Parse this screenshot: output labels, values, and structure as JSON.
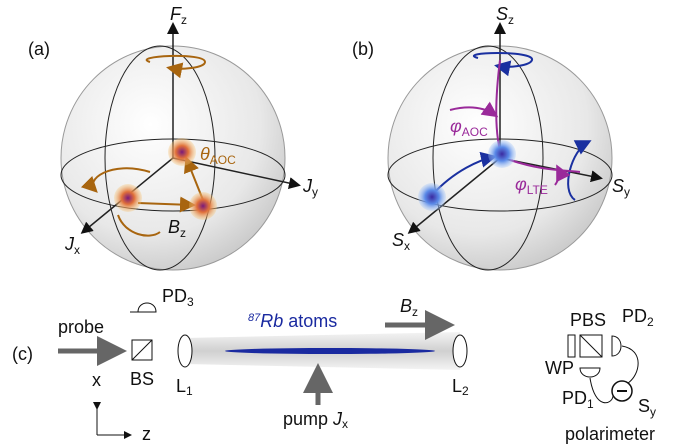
{
  "panel_a": {
    "label": "(a)",
    "axis_z": {
      "symbol": "F",
      "sub": "z"
    },
    "axis_y": {
      "symbol": "J",
      "sub": "y"
    },
    "axis_x": {
      "symbol": "J",
      "sub": "x"
    },
    "field": {
      "symbol": "B",
      "sub": "z"
    },
    "angle": {
      "symbol": "θ",
      "sub": "AOC"
    }
  },
  "panel_b": {
    "label": "(b)",
    "axis_z": {
      "symbol": "S",
      "sub": "z"
    },
    "axis_y": {
      "symbol": "S",
      "sub": "y"
    },
    "axis_x": {
      "symbol": "S",
      "sub": "x"
    },
    "angle_aoc": {
      "symbol": "φ",
      "sub": "AOC"
    },
    "angle_lte": {
      "symbol": "φ",
      "sub": "LTE"
    }
  },
  "panel_c": {
    "label": "(c)",
    "probe": "probe",
    "pd3": {
      "name": "PD",
      "sub": "3"
    },
    "bs": "BS",
    "x": "x",
    "z": "z",
    "l1": {
      "name": "L",
      "sub": "1"
    },
    "atoms": {
      "iso": "87",
      "element": "Rb",
      "rest": " atoms"
    },
    "field": {
      "symbol": "B",
      "sub": "z"
    },
    "pump": {
      "name": "pump ",
      "symbol": "J",
      "sub": "x"
    },
    "l2": {
      "name": "L",
      "sub": "2"
    },
    "pbs": "PBS",
    "pd2": {
      "name": "PD",
      "sub": "2"
    },
    "wp": "WP",
    "pd1": {
      "name": "PD",
      "sub": "1"
    },
    "sy": {
      "symbol": "S",
      "sub": "y"
    },
    "polarimeter": "polarimeter"
  }
}
